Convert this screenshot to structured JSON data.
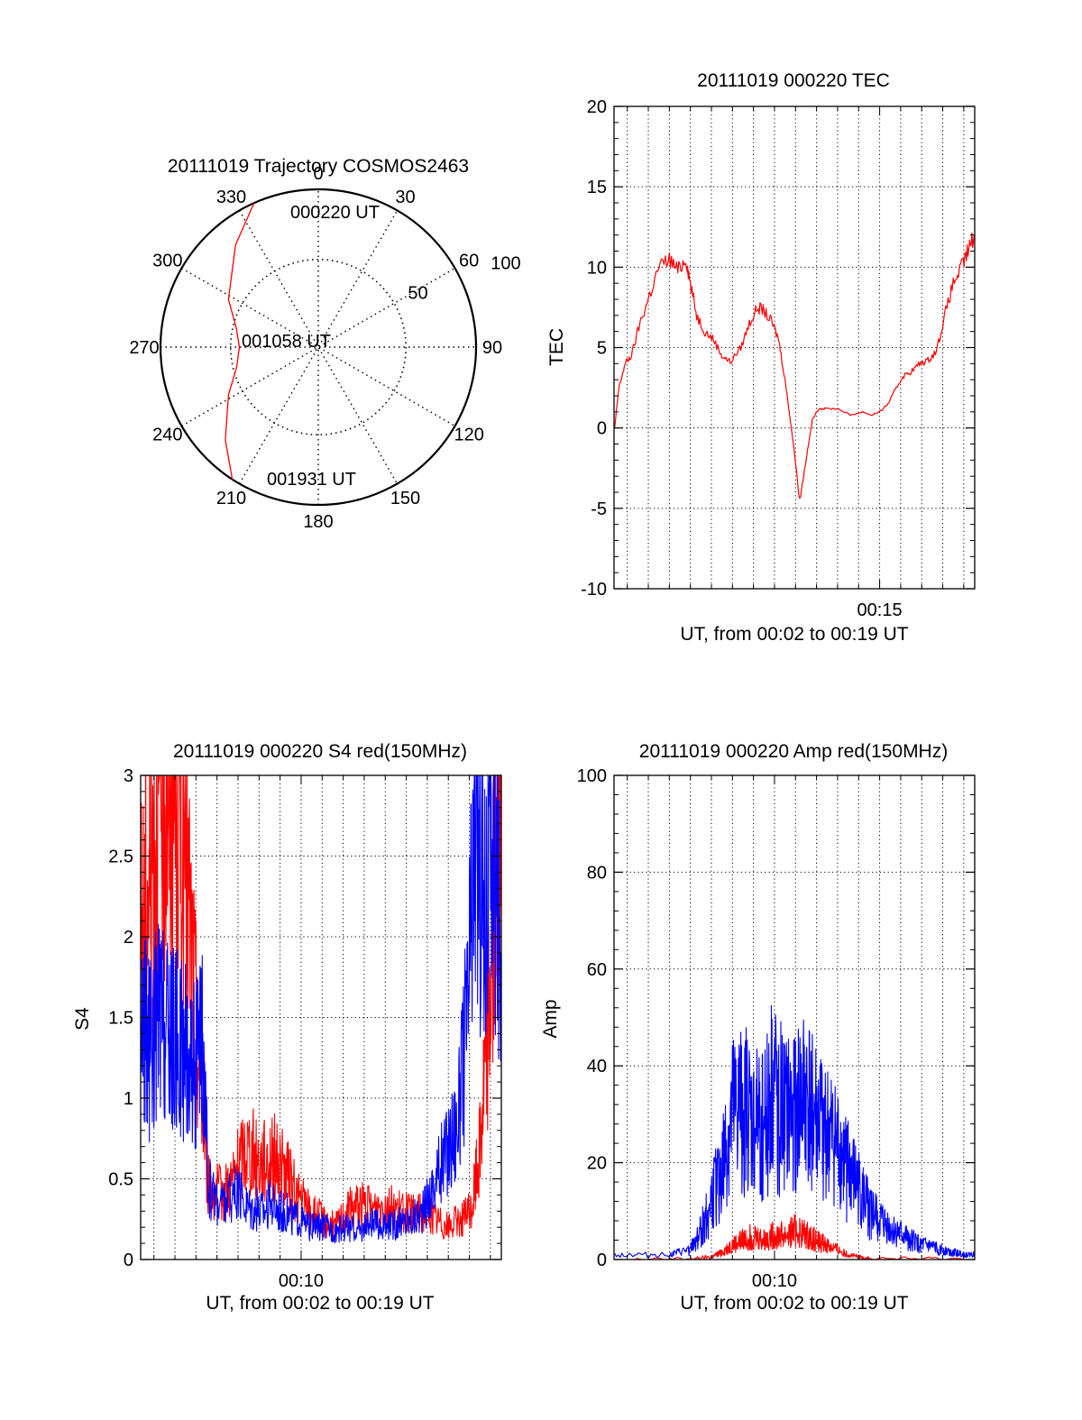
{
  "chart_data": [
    {
      "type": "polar",
      "title": "20111019 Trajectory COSMOS2463",
      "azimuth_labels": [
        "0",
        "30",
        "60",
        "90",
        "120",
        "150",
        "180",
        "210",
        "240",
        "270",
        "300",
        "330"
      ],
      "radial_labels": [
        "50",
        "100"
      ],
      "rlim": [
        0,
        90
      ],
      "grid": true,
      "series": [
        {
          "color": "#ff0000",
          "points": [
            [
              336,
              90
            ],
            [
              321,
              75
            ],
            [
              298,
              58
            ],
            [
              283,
              48
            ],
            [
              270,
              45
            ],
            [
              256,
              48
            ],
            [
              242,
              58
            ],
            [
              225,
              75
            ],
            [
              213,
              90
            ]
          ]
        }
      ],
      "annotations": [
        {
          "text": "000220 UT"
        },
        {
          "text": "001058 UT"
        },
        {
          "text": "001931 UT"
        }
      ]
    },
    {
      "type": "line",
      "title": "20111019 000220 TEC",
      "ylabel": "TEC",
      "xlabel": "UT, from 00:02 to 00:19 UT",
      "ylim": [
        -10,
        20
      ],
      "yticks": [
        -10,
        -5,
        0,
        5,
        10,
        15,
        20
      ],
      "xlim": [
        2.37,
        19.52
      ],
      "xtick_labels": [
        {
          "x": 15,
          "label": "00:15"
        }
      ],
      "grid": true,
      "series": [
        {
          "color": "#ff0000",
          "x": [
            2.4,
            2.6,
            2.9,
            3.2,
            3.6,
            4.0,
            4.5,
            5.0,
            5.4,
            5.8,
            6.0,
            6.3,
            6.7,
            7.1,
            7.5,
            7.9,
            8.4,
            8.8,
            9.2,
            9.5,
            9.9,
            10.2,
            10.5,
            10.9,
            11.2,
            11.5,
            11.8,
            12.1,
            12.4,
            13.0,
            13.6,
            14.2,
            14.6,
            15.0,
            15.4,
            15.8,
            16.1,
            16.5,
            16.9,
            17.3,
            17.7,
            18.1,
            18.5,
            18.9,
            19.2,
            19.5
          ],
          "y": [
            0,
            2.5,
            4,
            4.5,
            6.5,
            8,
            10,
            10.5,
            9.8,
            10.5,
            9,
            7,
            6,
            5.5,
            4.5,
            4.1,
            5,
            6.5,
            7.5,
            7.3,
            6.5,
            5.5,
            3,
            -1,
            -4.5,
            -2,
            0.5,
            1.2,
            1.2,
            1.2,
            0.8,
            1,
            0.8,
            1,
            1.5,
            2.5,
            3.2,
            3.5,
            4,
            4.2,
            4.8,
            7,
            9,
            10,
            11,
            12
          ]
        }
      ]
    },
    {
      "type": "line",
      "title": "20111019 000220 S4 red(150MHz)",
      "ylabel": "S4",
      "xlabel": "UT, from 00:02 to 00:19 UT",
      "ylim": [
        0,
        3
      ],
      "yticks": [
        "0",
        "0.5",
        "1",
        "1.5",
        "2",
        "2.5",
        "3"
      ],
      "xlim": [
        2.37,
        19.52
      ],
      "xtick_labels": [
        {
          "x": 10,
          "label": "00:10"
        }
      ],
      "grid": true,
      "series": [
        {
          "color": "#ff0000",
          "x": [
            2.4,
            2.8,
            3.2,
            3.6,
            4.0,
            4.5,
            5.0,
            5.6,
            6.2,
            6.8,
            7.4,
            8.0,
            8.6,
            9.2,
            9.8,
            10.4,
            11.0,
            11.6,
            12.2,
            12.8,
            13.4,
            14.0,
            14.6,
            15.2,
            15.8,
            16.4,
            17.0,
            17.6,
            18.1,
            18.5,
            18.9,
            19.3,
            19.5
          ],
          "y": [
            2,
            2.4,
            2.8,
            3,
            2.9,
            2.5,
            1.5,
            0.45,
            0.4,
            0.5,
            0.7,
            0.6,
            0.65,
            0.55,
            0.4,
            0.3,
            0.25,
            0.2,
            0.3,
            0.35,
            0.3,
            0.35,
            0.3,
            0.28,
            0.3,
            0.25,
            0.2,
            0.25,
            0.3,
            0.7,
            1.5,
            2.3,
            2.6
          ]
        },
        {
          "color": "#0000ff",
          "x": [
            2.4,
            2.8,
            3.2,
            3.6,
            4.0,
            4.5,
            5.0,
            5.3,
            5.6,
            6.2,
            6.8,
            7.4,
            8.0,
            8.6,
            9.2,
            9.8,
            10.4,
            11.0,
            11.6,
            12.2,
            12.8,
            13.4,
            14.0,
            14.6,
            15.2,
            15.8,
            16.4,
            17.0,
            17.5,
            17.9,
            18.3,
            18.7,
            19.1,
            19.5
          ],
          "y": [
            1.5,
            1.3,
            1.5,
            1.4,
            1.35,
            1.3,
            1.2,
            1.3,
            0.45,
            0.35,
            0.4,
            0.35,
            0.3,
            0.35,
            0.3,
            0.25,
            0.2,
            0.2,
            0.18,
            0.2,
            0.18,
            0.22,
            0.2,
            0.22,
            0.25,
            0.3,
            0.5,
            0.7,
            0.9,
            1.5,
            2.8,
            2.2,
            2.6,
            1.9
          ]
        }
      ]
    },
    {
      "type": "line",
      "title": "20111019 000220 Amp red(150MHz)",
      "ylabel": "Amp",
      "xlabel": "UT, from 00:02 to 00:19 UT",
      "ylim": [
        0,
        100
      ],
      "yticks": [
        0,
        20,
        40,
        60,
        80,
        100
      ],
      "xlim": [
        2.37,
        19.52
      ],
      "xtick_labels": [
        {
          "x": 10,
          "label": "00:10"
        }
      ],
      "grid": true,
      "series": [
        {
          "color": "#ff0000",
          "x": [
            2.4,
            6.0,
            7.0,
            7.5,
            8.0,
            8.5,
            9.0,
            9.5,
            10.0,
            10.5,
            11.0,
            11.5,
            12.0,
            12.5,
            13.0,
            13.5,
            14.0,
            14.5,
            19.5
          ],
          "y": [
            0,
            0,
            0.5,
            1.5,
            3,
            4,
            5,
            4,
            5,
            5,
            6,
            5,
            4,
            3,
            2,
            1,
            0.5,
            0.2,
            0
          ]
        },
        {
          "color": "#0000ff",
          "x": [
            2.4,
            5.0,
            6.0,
            6.5,
            7.0,
            7.5,
            8.0,
            8.5,
            9.0,
            9.5,
            10.0,
            10.5,
            11.0,
            11.5,
            12.0,
            12.5,
            13.0,
            13.5,
            14.0,
            14.5,
            15.0,
            15.5,
            16.0,
            16.5,
            17.0,
            17.5,
            18.0,
            18.5,
            19.0,
            19.5
          ],
          "y": [
            1,
            1,
            2,
            6,
            12,
            18,
            28,
            32,
            26,
            30,
            35,
            28,
            30,
            32,
            28,
            25,
            22,
            18,
            14,
            10,
            8,
            6,
            5,
            4,
            3,
            2.5,
            2,
            1.5,
            1,
            1
          ]
        }
      ]
    }
  ]
}
